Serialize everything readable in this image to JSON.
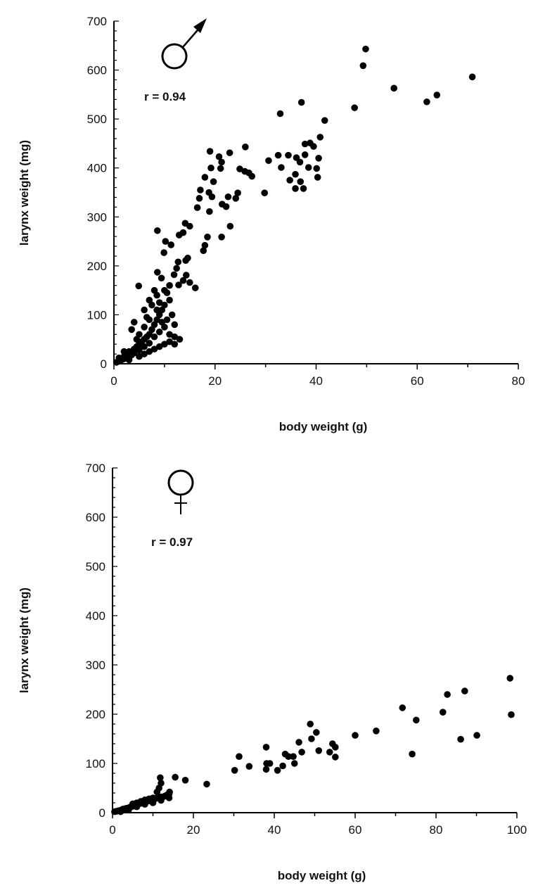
{
  "chart_data": [
    {
      "type": "scatter",
      "sex_symbol": "male",
      "annotation": "r = 0.94",
      "xlabel": "body weight (g)",
      "ylabel": "larynx weight (mg)",
      "xlim": [
        0,
        80
      ],
      "ylim": [
        0,
        700
      ],
      "xticks": [
        "0",
        "20",
        "40",
        "60",
        "80"
      ],
      "yticks": [
        "0",
        "100",
        "200",
        "300",
        "400",
        "500",
        "600",
        "700"
      ],
      "grid": false,
      "marker_color": "#000000",
      "points": [
        [
          49.8,
          643
        ],
        [
          49.3,
          609
        ],
        [
          70.9,
          586
        ],
        [
          55.4,
          563
        ],
        [
          63.9,
          549
        ],
        [
          61.9,
          535
        ],
        [
          37.1,
          534
        ],
        [
          32.9,
          511
        ],
        [
          47.6,
          523
        ],
        [
          41.7,
          497
        ],
        [
          40.8,
          463
        ],
        [
          37.8,
          449
        ],
        [
          38.8,
          451
        ],
        [
          39.5,
          444
        ],
        [
          26.0,
          443
        ],
        [
          19.0,
          434
        ],
        [
          22.9,
          431
        ],
        [
          20.8,
          423
        ],
        [
          21.3,
          412
        ],
        [
          21.1,
          399
        ],
        [
          19.2,
          400
        ],
        [
          24.9,
          398
        ],
        [
          25.9,
          393
        ],
        [
          26.7,
          390
        ],
        [
          27.3,
          383
        ],
        [
          30.6,
          415
        ],
        [
          32.5,
          426
        ],
        [
          34.5,
          426
        ],
        [
          36.1,
          421
        ],
        [
          36.8,
          412
        ],
        [
          37.8,
          427
        ],
        [
          40.5,
          420
        ],
        [
          40.1,
          399
        ],
        [
          38.5,
          401
        ],
        [
          33.1,
          401
        ],
        [
          35.9,
          387
        ],
        [
          40.3,
          381
        ],
        [
          34.8,
          375
        ],
        [
          36.9,
          372
        ],
        [
          35.9,
          358
        ],
        [
          37.5,
          358
        ],
        [
          29.8,
          349
        ],
        [
          18.0,
          381
        ],
        [
          19.7,
          372
        ],
        [
          17.1,
          355
        ],
        [
          18.8,
          350
        ],
        [
          19.4,
          341
        ],
        [
          16.9,
          338
        ],
        [
          22.6,
          341
        ],
        [
          24.5,
          349
        ],
        [
          24.1,
          338
        ],
        [
          16.5,
          319
        ],
        [
          21.4,
          326
        ],
        [
          22.2,
          321
        ],
        [
          18.9,
          311
        ],
        [
          23.0,
          281
        ],
        [
          14.1,
          287
        ],
        [
          15.0,
          281
        ],
        [
          13.7,
          268
        ],
        [
          12.9,
          263
        ],
        [
          8.6,
          272
        ],
        [
          18.5,
          259
        ],
        [
          21.3,
          259
        ],
        [
          10.2,
          250
        ],
        [
          11.3,
          243
        ],
        [
          18.0,
          242
        ],
        [
          17.7,
          231
        ],
        [
          9.9,
          227
        ],
        [
          14.6,
          216
        ],
        [
          14.2,
          211
        ],
        [
          12.7,
          208
        ],
        [
          12.4,
          195
        ],
        [
          8.6,
          187
        ],
        [
          9.4,
          175
        ],
        [
          11.9,
          182
        ],
        [
          14.3,
          181
        ],
        [
          15.0,
          166
        ],
        [
          16.1,
          155
        ],
        [
          4.9,
          159
        ],
        [
          13.7,
          170
        ],
        [
          12.8,
          161
        ],
        [
          0.5,
          3
        ],
        [
          1,
          5
        ],
        [
          1.5,
          8
        ],
        [
          2,
          10
        ],
        [
          2,
          15
        ],
        [
          2.5,
          12
        ],
        [
          3,
          20
        ],
        [
          3,
          25
        ],
        [
          3.5,
          18
        ],
        [
          4,
          30
        ],
        [
          4,
          22
        ],
        [
          4.5,
          35
        ],
        [
          5,
          40
        ],
        [
          5,
          28
        ],
        [
          5.5,
          45
        ],
        [
          6,
          50
        ],
        [
          6,
          35
        ],
        [
          6.5,
          55
        ],
        [
          7,
          60
        ],
        [
          7,
          42
        ],
        [
          7.5,
          70
        ],
        [
          8,
          80
        ],
        [
          8,
          55
        ],
        [
          8.5,
          90
        ],
        [
          9,
          100
        ],
        [
          9,
          65
        ],
        [
          9.5,
          110
        ],
        [
          10,
          120
        ],
        [
          10,
          75
        ],
        [
          10.5,
          90
        ],
        [
          11,
          60
        ],
        [
          11,
          130
        ],
        [
          11.5,
          100
        ],
        [
          12,
          55
        ],
        [
          12,
          80
        ],
        [
          4,
          85
        ],
        [
          3.5,
          70
        ],
        [
          6,
          110
        ],
        [
          6.5,
          95
        ],
        [
          7,
          130
        ],
        [
          7.5,
          120
        ],
        [
          8,
          150
        ],
        [
          8.5,
          140
        ],
        [
          9,
          125
        ],
        [
          5,
          60
        ],
        [
          4.5,
          50
        ],
        [
          2,
          25
        ],
        [
          1,
          12
        ],
        [
          3,
          8
        ],
        [
          5,
          15
        ],
        [
          6,
          20
        ],
        [
          7,
          25
        ],
        [
          8,
          30
        ],
        [
          9,
          35
        ],
        [
          10,
          40
        ],
        [
          11,
          45
        ],
        [
          12,
          40
        ],
        [
          13,
          50
        ],
        [
          6,
          75
        ],
        [
          7,
          90
        ],
        [
          8.5,
          110
        ],
        [
          9.5,
          85
        ],
        [
          10,
          150
        ],
        [
          10.5,
          145
        ],
        [
          11,
          160
        ]
      ]
    },
    {
      "type": "scatter",
      "sex_symbol": "female",
      "annotation": "r = 0.97",
      "xlabel": "body weight (g)",
      "ylabel": "larynx weight (mg)",
      "xlim": [
        0,
        100
      ],
      "ylim": [
        0,
        700
      ],
      "xticks": [
        "0",
        "20",
        "40",
        "60",
        "80",
        "100"
      ],
      "yticks": [
        "0",
        "100",
        "200",
        "300",
        "400",
        "500",
        "600",
        "700"
      ],
      "grid": false,
      "marker_color": "#000000",
      "points": [
        [
          98.3,
          273
        ],
        [
          98.6,
          199
        ],
        [
          87.1,
          247
        ],
        [
          82.8,
          240
        ],
        [
          81.7,
          204
        ],
        [
          71.7,
          213
        ],
        [
          75.1,
          188
        ],
        [
          74.1,
          119
        ],
        [
          86.1,
          149
        ],
        [
          90.1,
          157
        ],
        [
          65.2,
          166
        ],
        [
          60.0,
          157
        ],
        [
          48.9,
          180
        ],
        [
          50.4,
          163
        ],
        [
          49.2,
          150
        ],
        [
          46.1,
          143
        ],
        [
          46.8,
          123
        ],
        [
          51.0,
          126
        ],
        [
          54.4,
          140
        ],
        [
          55.1,
          133
        ],
        [
          53.7,
          123
        ],
        [
          55.1,
          113
        ],
        [
          38.0,
          133
        ],
        [
          31.3,
          114
        ],
        [
          30.2,
          86
        ],
        [
          33.8,
          94
        ],
        [
          38.1,
          100
        ],
        [
          38.9,
          100
        ],
        [
          38.0,
          88
        ],
        [
          40.8,
          86
        ],
        [
          42.1,
          95
        ],
        [
          42.7,
          119
        ],
        [
          43.5,
          114
        ],
        [
          44.7,
          114
        ],
        [
          45.0,
          100
        ],
        [
          23.3,
          58
        ],
        [
          18.0,
          66
        ],
        [
          15.5,
          72
        ],
        [
          11.8,
          71
        ],
        [
          14.1,
          42
        ],
        [
          0.5,
          2
        ],
        [
          1,
          3
        ],
        [
          1.5,
          4
        ],
        [
          2,
          5
        ],
        [
          2.5,
          7
        ],
        [
          3,
          8
        ],
        [
          3.5,
          9
        ],
        [
          4,
          10
        ],
        [
          4.5,
          12
        ],
        [
          5,
          13
        ],
        [
          5,
          18
        ],
        [
          5.5,
          15
        ],
        [
          6,
          16
        ],
        [
          6,
          20
        ],
        [
          6.5,
          18
        ],
        [
          7,
          19
        ],
        [
          7,
          23
        ],
        [
          7.5,
          20
        ],
        [
          8,
          22
        ],
        [
          8,
          26
        ],
        [
          8.5,
          23
        ],
        [
          9,
          24
        ],
        [
          9,
          28
        ],
        [
          9.5,
          25
        ],
        [
          10,
          26
        ],
        [
          10,
          30
        ],
        [
          10.5,
          28
        ],
        [
          11,
          30
        ],
        [
          11.5,
          30
        ],
        [
          12,
          32
        ],
        [
          12.5,
          32
        ],
        [
          13,
          34
        ],
        [
          13.5,
          36
        ],
        [
          14,
          38
        ],
        [
          11,
          42
        ],
        [
          11.5,
          50
        ],
        [
          12,
          60
        ],
        [
          2,
          2
        ],
        [
          4,
          6
        ],
        [
          6,
          12
        ],
        [
          8,
          17
        ],
        [
          10,
          20
        ],
        [
          12,
          25
        ],
        [
          14,
          30
        ]
      ]
    }
  ]
}
